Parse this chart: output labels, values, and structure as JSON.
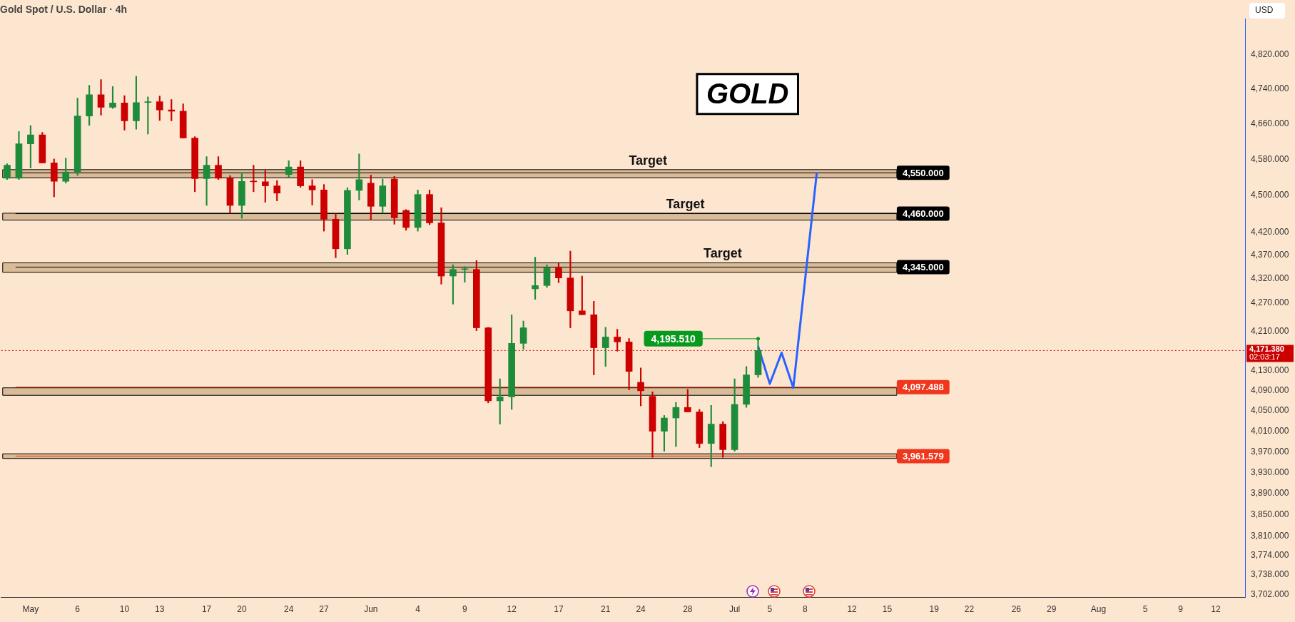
{
  "chart_data": {
    "type": "candlestick",
    "title": "Gold Spot / U.S. Dollar · 4h",
    "ylabel": "USD",
    "categories": [
      null,
      null,
      "May",
      null,
      null,
      null,
      "6",
      null,
      null,
      null,
      "10",
      null,
      null,
      "13",
      null,
      null,
      null,
      "17",
      null,
      null,
      "20",
      null,
      null,
      null,
      "24",
      null,
      null,
      "27",
      null,
      null,
      null,
      "Jun",
      null,
      null,
      null,
      "4",
      null,
      null,
      null,
      "9",
      null,
      null,
      null,
      "12",
      null,
      null,
      null,
      "17",
      null,
      null,
      null,
      "21",
      null,
      null,
      "24",
      null,
      null,
      null,
      "28",
      null,
      null,
      null,
      "Jul",
      null,
      null,
      "5",
      null,
      null,
      "8",
      null,
      null,
      null,
      "12",
      null,
      null,
      "15",
      null,
      null,
      null,
      "19",
      null,
      null,
      "22",
      null,
      null,
      null,
      "26",
      null,
      null,
      "29",
      null,
      null,
      null,
      "Aug",
      null,
      null,
      null,
      "5",
      null,
      null,
      "9",
      null,
      null,
      "12",
      null,
      null
    ],
    "ohlc": [
      [
        4538,
        4570,
        4535,
        4567
      ],
      [
        4538,
        4643,
        4535,
        4615
      ],
      [
        4615,
        4656,
        4561,
        4635
      ],
      [
        4635,
        4641,
        4572,
        4572
      ],
      [
        4572,
        4581,
        4497,
        4531
      ],
      [
        4531,
        4583,
        4527,
        4552
      ],
      [
        4552,
        4719,
        4544,
        4678
      ],
      [
        4678,
        4749,
        4657,
        4727
      ],
      [
        4727,
        4762,
        4680,
        4698
      ],
      [
        4698,
        4746,
        4695,
        4708
      ],
      [
        4708,
        4725,
        4646,
        4667
      ],
      [
        4667,
        4770,
        4648,
        4709
      ],
      [
        4709,
        4722,
        4637,
        4711
      ],
      [
        4711,
        4724,
        4668,
        4692
      ],
      [
        4692,
        4716,
        4667,
        4689
      ],
      [
        4689,
        4706,
        4628,
        4628
      ],
      [
        4628,
        4631,
        4508,
        4537
      ],
      [
        4537,
        4586,
        4478,
        4567
      ],
      [
        4567,
        4586,
        4535,
        4538
      ],
      [
        4538,
        4544,
        4461,
        4478
      ],
      [
        4478,
        4550,
        4450,
        4531
      ],
      [
        4531,
        4567,
        4508,
        4530
      ],
      [
        4530,
        4556,
        4485,
        4521
      ],
      [
        4521,
        4533,
        4488,
        4505
      ],
      [
        4546,
        4577,
        4540,
        4563
      ],
      [
        4563,
        4577,
        4518,
        4521
      ],
      [
        4521,
        4535,
        4479,
        4512
      ],
      [
        4512,
        4524,
        4422,
        4448
      ],
      [
        4448,
        4460,
        4365,
        4384
      ],
      [
        4384,
        4517,
        4372,
        4511
      ],
      [
        4511,
        4592,
        4490,
        4535
      ],
      [
        4527,
        4545,
        4446,
        4476
      ],
      [
        4476,
        4536,
        4461,
        4521
      ],
      [
        4536,
        4542,
        4437,
        4451
      ],
      [
        4467,
        4469,
        4424,
        4430
      ],
      [
        4430,
        4512,
        4422,
        4502
      ],
      [
        4502,
        4512,
        4436,
        4440
      ],
      [
        4440,
        4473,
        4309,
        4326
      ],
      [
        4326,
        4350,
        4267,
        4340
      ],
      [
        4340,
        4346,
        4313,
        4340
      ],
      [
        4340,
        4359,
        4212,
        4218
      ],
      [
        4218,
        4219,
        4066,
        4070
      ],
      [
        4070,
        4114,
        4024,
        4078
      ],
      [
        4078,
        4245,
        4053,
        4186
      ],
      [
        4186,
        4232,
        4174,
        4218
      ],
      [
        4299,
        4366,
        4277,
        4306
      ],
      [
        4306,
        4350,
        4302,
        4343
      ],
      [
        4343,
        4353,
        4312,
        4322
      ],
      [
        4322,
        4379,
        4218,
        4253
      ],
      [
        4253,
        4326,
        4245,
        4245
      ],
      [
        4245,
        4273,
        4122,
        4177
      ],
      [
        4177,
        4219,
        4139,
        4199
      ],
      [
        4199,
        4215,
        4170,
        4189
      ],
      [
        4189,
        4196,
        4092,
        4129
      ],
      [
        4107,
        4136,
        4060,
        4090
      ],
      [
        4079,
        4088,
        3959,
        4010
      ],
      [
        4010,
        4041,
        3971,
        4036
      ],
      [
        4036,
        4067,
        3980,
        4057
      ],
      [
        4057,
        4093,
        4048,
        4048
      ],
      [
        4048,
        4053,
        3978,
        3986
      ],
      [
        3986,
        4061,
        3941,
        4024
      ],
      [
        4024,
        4029,
        3959,
        3974
      ],
      [
        3974,
        4114,
        3971,
        4063
      ],
      [
        4063,
        4139,
        4057,
        4122
      ],
      [
        4122,
        4195.51,
        4117,
        4171.38
      ],
      null,
      null,
      null,
      null,
      null,
      null,
      null,
      null,
      null,
      null,
      null,
      null,
      null,
      null,
      null,
      null,
      null,
      null,
      null,
      null,
      null,
      null,
      null,
      null,
      null,
      null,
      null,
      null,
      null,
      null,
      null,
      null,
      null,
      null,
      null,
      null,
      null,
      null,
      null,
      null,
      null
    ],
    "colors": [
      "#1e8c3a",
      "#1e8c3a",
      "#1e8c3a",
      "#cc0000",
      "#cc0000",
      "#1e8c3a",
      "#1e8c3a",
      "#1e8c3a",
      "#cc0000",
      "#1e8c3a",
      "#cc0000",
      "#1e8c3a",
      "#1e8c3a",
      "#cc0000",
      "#cc0000",
      "#cc0000",
      "#cc0000",
      "#1e8c3a",
      "#cc0000",
      "#cc0000",
      "#1e8c3a",
      "#cc0000",
      "#cc0000",
      "#cc0000",
      "#1e8c3a",
      "#cc0000",
      "#cc0000",
      "#cc0000",
      "#cc0000",
      "#1e8c3a",
      "#1e8c3a",
      "#cc0000",
      "#1e8c3a",
      "#cc0000",
      "#cc0000",
      "#1e8c3a",
      "#cc0000",
      "#cc0000",
      "#1e8c3a",
      "#1e8c3a",
      "#cc0000",
      "#cc0000",
      "#1e8c3a",
      "#1e8c3a",
      "#1e8c3a",
      "#1e8c3a",
      "#1e8c3a",
      "#cc0000",
      "#cc0000",
      "#cc0000",
      "#cc0000",
      "#1e8c3a",
      "#cc0000",
      "#cc0000",
      "#cc0000",
      "#cc0000",
      "#1e8c3a",
      "#1e8c3a",
      "#cc0000",
      "#cc0000",
      "#1e8c3a",
      "#cc0000",
      "#1e8c3a",
      "#1e8c3a",
      "#1e8c3a",
      null,
      null,
      null,
      null,
      null,
      null,
      null,
      null,
      null,
      null,
      null,
      null,
      null,
      null,
      null,
      null,
      null,
      null,
      null,
      null,
      null,
      null,
      null,
      null,
      null,
      null,
      null,
      null,
      null,
      null,
      null,
      null,
      null,
      null,
      null,
      null,
      null,
      null,
      null,
      null,
      null
    ],
    "series": [
      {
        "type": "line",
        "color": "#2962ff",
        "values": [
          null,
          null,
          null,
          null,
          null,
          null,
          null,
          null,
          null,
          null,
          null,
          null,
          null,
          null,
          null,
          null,
          null,
          null,
          null,
          null,
          null,
          null,
          null,
          null,
          null,
          null,
          null,
          null,
          null,
          null,
          null,
          null,
          null,
          null,
          null,
          null,
          null,
          null,
          null,
          null,
          null,
          null,
          null,
          null,
          null,
          null,
          null,
          null,
          null,
          null,
          null,
          null,
          null,
          null,
          null,
          null,
          null,
          null,
          null,
          null,
          null,
          null,
          null,
          null,
          4180,
          4104,
          4167,
          4096,
          null,
          4550,
          null,
          null,
          null,
          null,
          null,
          null,
          null,
          null,
          null,
          null,
          null,
          null,
          null,
          null,
          null,
          null,
          null,
          null,
          null,
          null,
          null,
          null,
          null,
          null,
          null,
          null,
          null,
          null,
          null,
          null,
          null,
          null,
          null,
          null,
          null,
          null
        ]
      }
    ],
    "log": true,
    "ylim": [
      3697,
      4905
    ],
    "yticks": [
      {
        "value": 4820,
        "label": "4,820.000"
      },
      {
        "value": 4740,
        "label": "4,740.000"
      },
      {
        "value": 4660,
        "label": "4,660.000"
      },
      {
        "value": 4580,
        "label": "4,580.000"
      },
      {
        "value": 4500,
        "label": "4,500.000"
      },
      {
        "value": 4420,
        "label": "4,420.000"
      },
      {
        "value": 4370,
        "label": "4,370.000"
      },
      {
        "value": 4320,
        "label": "4,320.000"
      },
      {
        "value": 4270,
        "label": "4,270.000"
      },
      {
        "value": 4210,
        "label": "4,210.000"
      },
      {
        "value": 4130,
        "label": "4,130.000"
      },
      {
        "value": 4090,
        "label": "4,090.000"
      },
      {
        "value": 4050,
        "label": "4,050.000"
      },
      {
        "value": 4010,
        "label": "4,010.000"
      },
      {
        "value": 3970,
        "label": "3,970.000"
      },
      {
        "value": 3930,
        "label": "3,930.000"
      },
      {
        "value": 3890,
        "label": "3,890.000"
      },
      {
        "value": 3850,
        "label": "3,850.000"
      },
      {
        "value": 3810,
        "label": "3,810.000"
      },
      {
        "value": 3774,
        "label": "3,774.000"
      },
      {
        "value": 3738,
        "label": "3,738.000"
      },
      {
        "value": 3702,
        "label": "3,702.000"
      }
    ],
    "bands": [
      {
        "axis": "y",
        "from": 4539,
        "to": 4557,
        "color": "#d9bb98"
      },
      {
        "axis": "y",
        "from": 4446,
        "to": 4461,
        "color": "#d9bb98"
      },
      {
        "axis": "y",
        "from": 4334,
        "to": 4354,
        "color": "#d9bb98"
      },
      {
        "axis": "y",
        "from": 4081,
        "to": 4096,
        "color": "#d9bb98"
      },
      {
        "axis": "y",
        "from": 3957,
        "to": 3966,
        "color": "#d9bb98"
      }
    ],
    "ref_lines": [
      {
        "axis": "y",
        "value": 4171.38,
        "label": "4,171.380\n02:03:17",
        "color": "#cc0000",
        "line_style": "dotted"
      },
      {
        "axis": "y",
        "value": 4195.51,
        "label": "4,195.510",
        "color": "#089a1e",
        "line_style": "solid"
      },
      {
        "axis": "y",
        "value": 4550,
        "label": "4,550.000",
        "color": "#000000",
        "line_style": "solid"
      },
      {
        "axis": "y",
        "value": 4460,
        "label": "4,460.000",
        "color": "#000000",
        "line_style": "solid"
      },
      {
        "axis": "y",
        "value": 4345,
        "label": "4,345.000",
        "color": "#000000",
        "line_style": "solid"
      },
      {
        "axis": "y",
        "value": 4097.488,
        "label": "4,097.488",
        "color": "#f0361c",
        "line_style": "solid"
      },
      {
        "axis": "y",
        "value": 3961.579,
        "label": "3,961.579",
        "color": "#f0361c",
        "line_style": "solid"
      }
    ],
    "annotations": [
      "GOLD",
      "Target",
      "Target",
      "Target"
    ],
    "grid": false,
    "legend": false
  }
}
